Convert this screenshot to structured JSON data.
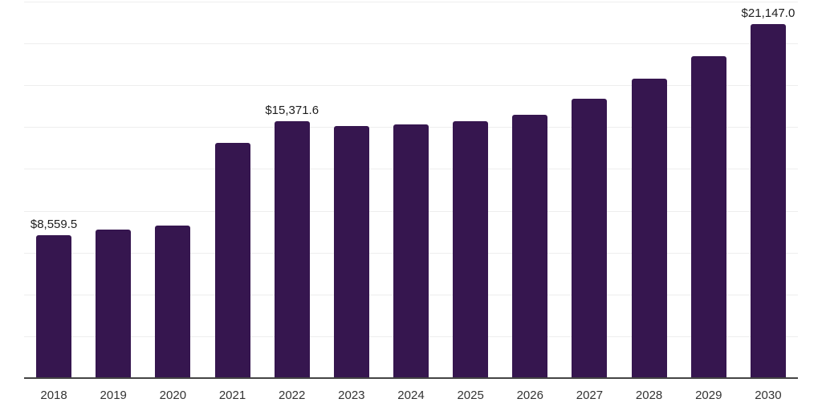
{
  "chart_data": {
    "type": "bar",
    "title": "",
    "xlabel": "",
    "ylabel": "",
    "categories": [
      "2018",
      "2019",
      "2020",
      "2021",
      "2022",
      "2023",
      "2024",
      "2025",
      "2026",
      "2027",
      "2028",
      "2029",
      "2030"
    ],
    "values": [
      8559.5,
      8880,
      9130,
      14060,
      15371.6,
      15080,
      15170,
      15360,
      15730,
      16700,
      17900,
      19230,
      21147.0
    ],
    "data_labels": [
      {
        "index": 0,
        "text": "$8,559.5"
      },
      {
        "index": 4,
        "text": "$15,371.6"
      },
      {
        "index": 12,
        "text": "$21,147.0"
      }
    ],
    "ylim": [
      0,
      22500
    ],
    "gridline_step": 2500,
    "grid": "on",
    "legend": "none",
    "colors": {
      "bar": "#36164f",
      "gridline": "#eeeeee",
      "axis_line": "#444444",
      "tick_label": "#333333",
      "data_label": "#1d1d1d",
      "background": "#ffffff"
    }
  }
}
